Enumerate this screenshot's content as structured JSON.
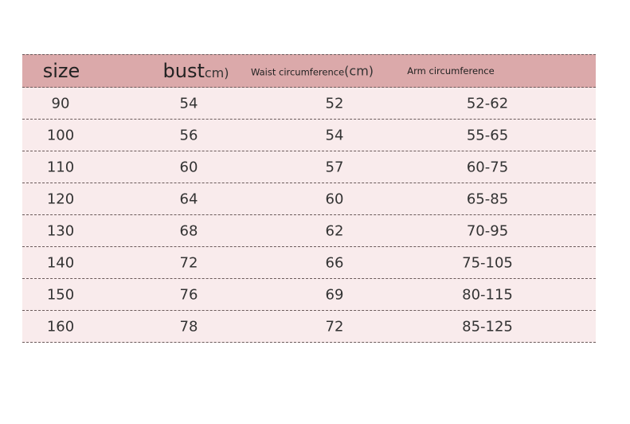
{
  "header": {
    "size": "size",
    "bust": "bust",
    "bust_unit": "cm)",
    "waist": "Waist circumference",
    "waist_unit": "(cm)",
    "arm": "Arm circumference"
  },
  "rows": [
    [
      "90",
      "54",
      "52",
      "52-62"
    ],
    [
      "100",
      "56",
      "54",
      "55-65"
    ],
    [
      "110",
      "60",
      "57",
      "60-75"
    ],
    [
      "120",
      "64",
      "60",
      "65-85"
    ],
    [
      "130",
      "68",
      "62",
      "70-95"
    ],
    [
      "140",
      "72",
      "66",
      "75-105"
    ],
    [
      "150",
      "76",
      "69",
      "80-115"
    ],
    [
      "160",
      "78",
      "72",
      "85-125"
    ]
  ],
  "colors": {
    "header_bg": "#dba9aa",
    "row_bg": "#f9ebec"
  }
}
